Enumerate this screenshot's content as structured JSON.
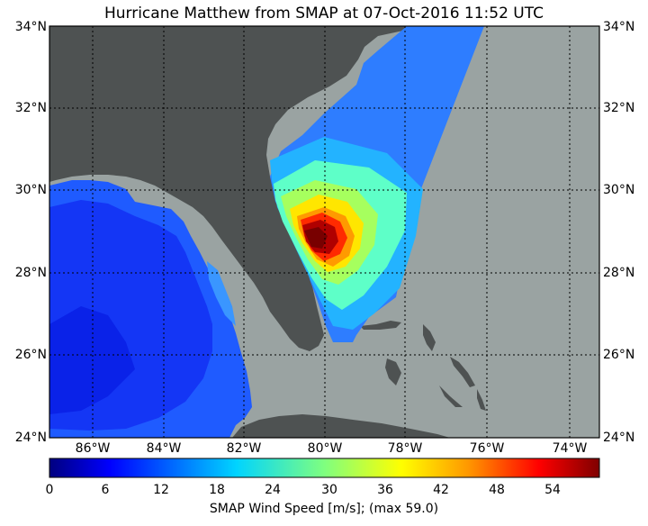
{
  "title": "Hurricane Matthew from SMAP at 07-Oct-2016 11:52 UTC",
  "lat_labels": [
    "34°N",
    "32°N",
    "30°N",
    "28°N",
    "26°N",
    "24°N"
  ],
  "lon_labels": [
    "86°W",
    "84°W",
    "82°W",
    "80°W",
    "78°W",
    "76°W",
    "74°W"
  ],
  "colorbar": {
    "ticks": [
      "0",
      "6",
      "12",
      "18",
      "24",
      "30",
      "36",
      "42",
      "48",
      "54"
    ],
    "label": "SMAP Wind Speed [m/s]; (max 59.0)",
    "min": 0,
    "max": 59,
    "colors": [
      "#00007f",
      "#0000ff",
      "#007fff",
      "#00ffff",
      "#7fff7f",
      "#ffff00",
      "#ff7f00",
      "#ff0000",
      "#7f0000"
    ]
  },
  "colors": {
    "land": "#4e5252",
    "ocean_nodata": "#9aa3a2",
    "grid": "#000000"
  },
  "map_data": {
    "lon_range": [
      -86.6,
      -73.6
    ],
    "lat_range": [
      24,
      34
    ],
    "storm_center": {
      "lon": -79.9,
      "lat": 28.8
    },
    "max_wind_ms": 59.0
  }
}
